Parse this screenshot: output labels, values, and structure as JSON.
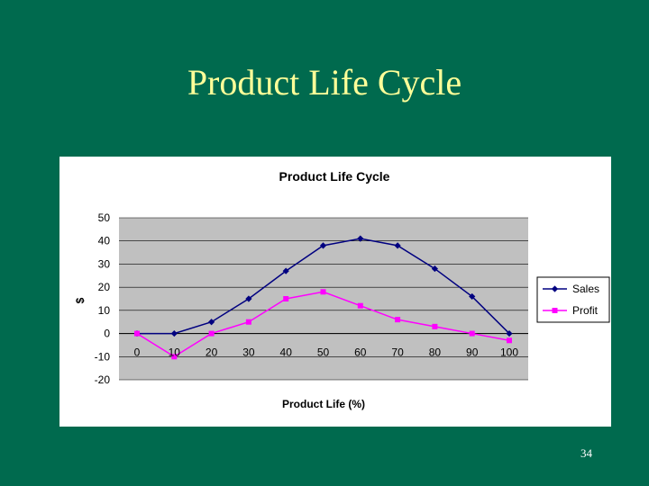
{
  "slide": {
    "title": "Product Life Cycle",
    "page_number": "34"
  },
  "colors": {
    "background": "#006a4e",
    "title": "#ffff99",
    "plot_area": "#c0c0c0",
    "sales": "#000080",
    "profit": "#ff00ff"
  },
  "chart_data": {
    "type": "line",
    "title": "Product Life Cycle",
    "xlabel": "Product Life (%)",
    "ylabel": "$",
    "x": [
      0,
      10,
      20,
      30,
      40,
      50,
      60,
      70,
      80,
      90,
      100
    ],
    "ylim": [
      -20,
      50
    ],
    "yticks": [
      50,
      40,
      30,
      20,
      10,
      0,
      -10,
      -20
    ],
    "grid": true,
    "legend": "right",
    "series": [
      {
        "name": "Sales",
        "marker": "diamond",
        "values": [
          0,
          0,
          5,
          15,
          27,
          38,
          41,
          38,
          28,
          16,
          0
        ]
      },
      {
        "name": "Profit",
        "marker": "square",
        "values": [
          0,
          -10,
          0,
          5,
          15,
          18,
          12,
          6,
          3,
          0,
          -3
        ]
      }
    ]
  }
}
